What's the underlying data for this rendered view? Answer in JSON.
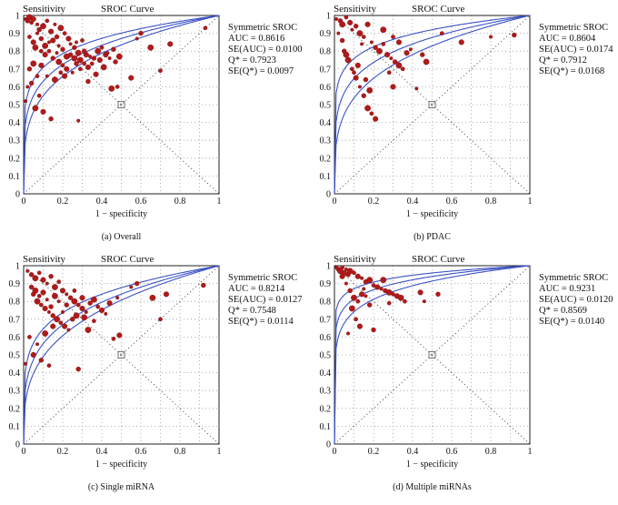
{
  "chart_data": [
    {
      "type": "scatter",
      "caption": "(a) Overall",
      "title": "SROC Curve",
      "ylabel": "Sensitivity",
      "xlabel": "1 − specificity",
      "xlim": [
        0,
        1
      ],
      "ylim": [
        0,
        1
      ],
      "x_ticks": [
        "0",
        "0.2",
        "0.4",
        "0.6",
        "0.8",
        "1"
      ],
      "y_ticks": [
        "0",
        "0.1",
        "0.2",
        "0.3",
        "0.4",
        "0.5",
        "0.6",
        "0.7",
        "0.8",
        "0.9",
        "1"
      ],
      "stats": [
        "Symmetric SROC",
        "AUC = 0.8616",
        "SE(AUC) = 0.0100",
        "Q* = 0.7923",
        "SE(Q*) = 0.0097"
      ],
      "curve_exponents": [
        0.15,
        0.2,
        0.26
      ],
      "points": [
        [
          0.01,
          0.98
        ],
        [
          0.02,
          0.97
        ],
        [
          0.03,
          0.99
        ],
        [
          0.04,
          0.96
        ],
        [
          0.05,
          0.98
        ],
        [
          0.07,
          0.95
        ],
        [
          0.08,
          0.92
        ],
        [
          0.1,
          0.94
        ],
        [
          0.12,
          0.97
        ],
        [
          0.14,
          0.91
        ],
        [
          0.16,
          0.95
        ],
        [
          0.17,
          0.88
        ],
        [
          0.19,
          0.93
        ],
        [
          0.21,
          0.9
        ],
        [
          0.23,
          0.87
        ],
        [
          0.24,
          0.84
        ],
        [
          0.26,
          0.82
        ],
        [
          0.28,
          0.79
        ],
        [
          0.3,
          0.86
        ],
        [
          0.32,
          0.78
        ],
        [
          0.34,
          0.77
        ],
        [
          0.36,
          0.76
        ],
        [
          0.38,
          0.8
        ],
        [
          0.4,
          0.82
        ],
        [
          0.42,
          0.78
        ],
        [
          0.44,
          0.76
        ],
        [
          0.47,
          0.74
        ],
        [
          0.06,
          0.82
        ],
        [
          0.09,
          0.8
        ],
        [
          0.11,
          0.78
        ],
        [
          0.13,
          0.85
        ],
        [
          0.15,
          0.76
        ],
        [
          0.18,
          0.74
        ],
        [
          0.2,
          0.72
        ],
        [
          0.22,
          0.7
        ],
        [
          0.25,
          0.68
        ],
        [
          0.27,
          0.73
        ],
        [
          0.29,
          0.75
        ],
        [
          0.31,
          0.73
        ],
        [
          0.33,
          0.71
        ],
        [
          0.02,
          0.6
        ],
        [
          0.04,
          0.62
        ],
        [
          0.06,
          0.48
        ],
        [
          0.08,
          0.55
        ],
        [
          0.1,
          0.46
        ],
        [
          0.12,
          0.66
        ],
        [
          0.14,
          0.42
        ],
        [
          0.16,
          0.64
        ],
        [
          0.19,
          0.68
        ],
        [
          0.21,
          0.66
        ],
        [
          0.28,
          0.41
        ],
        [
          0.33,
          0.63
        ],
        [
          0.45,
          0.59
        ],
        [
          0.48,
          0.6
        ],
        [
          0.55,
          0.65
        ],
        [
          0.58,
          0.87
        ],
        [
          0.6,
          0.9
        ],
        [
          0.65,
          0.82
        ],
        [
          0.7,
          0.69
        ],
        [
          0.75,
          0.84
        ],
        [
          0.18,
          0.83
        ],
        [
          0.24,
          0.78
        ],
        [
          0.26,
          0.76
        ],
        [
          0.35,
          0.73
        ],
        [
          0.39,
          0.75
        ],
        [
          0.43,
          0.79
        ],
        [
          0.46,
          0.81
        ],
        [
          0.49,
          0.77
        ],
        [
          0.03,
          0.88
        ],
        [
          0.05,
          0.85
        ],
        [
          0.07,
          0.9
        ],
        [
          0.09,
          0.87
        ],
        [
          0.11,
          0.83
        ],
        [
          0.13,
          0.8
        ],
        [
          0.15,
          0.86
        ],
        [
          0.17,
          0.79
        ],
        [
          0.2,
          0.81
        ],
        [
          0.22,
          0.77
        ],
        [
          0.29,
          0.7
        ],
        [
          0.37,
          0.67
        ],
        [
          0.01,
          0.52
        ],
        [
          0.03,
          0.7
        ],
        [
          0.05,
          0.73
        ],
        [
          0.07,
          0.66
        ],
        [
          0.09,
          0.72
        ],
        [
          0.27,
          0.85
        ],
        [
          0.31,
          0.8
        ],
        [
          0.41,
          0.71
        ],
        [
          0.93,
          0.93
        ]
      ]
    },
    {
      "type": "scatter",
      "caption": "(b) PDAC",
      "title": "SROC Curve",
      "ylabel": "Sensitivity",
      "xlabel": "1 − specificity",
      "xlim": [
        0,
        1
      ],
      "ylim": [
        0,
        1
      ],
      "x_ticks": [
        "0",
        "0.2",
        "0.4",
        "0.6",
        "0.8",
        "1"
      ],
      "y_ticks": [
        "0",
        "0.1",
        "0.2",
        "0.3",
        "0.4",
        "0.5",
        "0.6",
        "0.7",
        "0.8",
        "0.9",
        "1"
      ],
      "stats": [
        "Symmetric SROC",
        "AUC = 0.8604",
        "SE(AUC) = 0.0174",
        "Q* = 0.7912",
        "SE(Q*) = 0.0168"
      ],
      "curve_exponents": [
        0.12,
        0.19,
        0.27
      ],
      "points": [
        [
          0.01,
          0.98
        ],
        [
          0.03,
          0.97
        ],
        [
          0.04,
          0.95
        ],
        [
          0.06,
          0.99
        ],
        [
          0.08,
          0.96
        ],
        [
          0.09,
          0.92
        ],
        [
          0.11,
          0.94
        ],
        [
          0.13,
          0.9
        ],
        [
          0.15,
          0.88
        ],
        [
          0.17,
          0.95
        ],
        [
          0.19,
          0.85
        ],
        [
          0.21,
          0.82
        ],
        [
          0.23,
          0.8
        ],
        [
          0.25,
          0.84
        ],
        [
          0.27,
          0.78
        ],
        [
          0.29,
          0.76
        ],
        [
          0.31,
          0.74
        ],
        [
          0.33,
          0.72
        ],
        [
          0.35,
          0.7
        ],
        [
          0.37,
          0.79
        ],
        [
          0.39,
          0.81
        ],
        [
          0.05,
          0.8
        ],
        [
          0.07,
          0.75
        ],
        [
          0.09,
          0.7
        ],
        [
          0.11,
          0.65
        ],
        [
          0.13,
          0.6
        ],
        [
          0.15,
          0.55
        ],
        [
          0.17,
          0.48
        ],
        [
          0.19,
          0.45
        ],
        [
          0.21,
          0.42
        ],
        [
          0.02,
          0.9
        ],
        [
          0.04,
          0.86
        ],
        [
          0.06,
          0.78
        ],
        [
          0.1,
          0.68
        ],
        [
          0.12,
          0.72
        ],
        [
          0.14,
          0.84
        ],
        [
          0.16,
          0.64
        ],
        [
          0.18,
          0.58
        ],
        [
          0.28,
          0.68
        ],
        [
          0.3,
          0.6
        ],
        [
          0.42,
          0.59
        ],
        [
          0.45,
          0.78
        ],
        [
          0.47,
          0.74
        ],
        [
          0.55,
          0.9
        ],
        [
          0.65,
          0.85
        ],
        [
          0.8,
          0.88
        ],
        [
          0.92,
          0.89
        ],
        [
          0.25,
          0.92
        ],
        [
          0.3,
          0.88
        ],
        [
          0.33,
          0.85
        ]
      ]
    },
    {
      "type": "scatter",
      "caption": "(c) Single miRNA",
      "title": "SROC Curve",
      "ylabel": "Sensitivity",
      "xlabel": "1 − specificity",
      "xlim": [
        0,
        1
      ],
      "ylim": [
        0,
        1
      ],
      "x_ticks": [
        "0",
        "0.2",
        "0.4",
        "0.6",
        "0.8",
        "1"
      ],
      "y_ticks": [
        "0",
        "0.1",
        "0.2",
        "0.3",
        "0.4",
        "0.5",
        "0.6",
        "0.7",
        "0.8",
        "0.9",
        "1"
      ],
      "stats": [
        "Symmetric SROC",
        "AUC = 0.8214",
        "SE(AUC) = 0.0127",
        "Q* = 0.7548",
        "SE(Q*) = 0.0114"
      ],
      "curve_exponents": [
        0.19,
        0.25,
        0.31
      ],
      "points": [
        [
          0.02,
          0.97
        ],
        [
          0.04,
          0.95
        ],
        [
          0.06,
          0.93
        ],
        [
          0.08,
          0.96
        ],
        [
          0.1,
          0.92
        ],
        [
          0.12,
          0.9
        ],
        [
          0.14,
          0.94
        ],
        [
          0.16,
          0.88
        ],
        [
          0.18,
          0.91
        ],
        [
          0.2,
          0.86
        ],
        [
          0.22,
          0.84
        ],
        [
          0.24,
          0.82
        ],
        [
          0.26,
          0.8
        ],
        [
          0.28,
          0.78
        ],
        [
          0.3,
          0.76
        ],
        [
          0.32,
          0.74
        ],
        [
          0.34,
          0.79
        ],
        [
          0.36,
          0.81
        ],
        [
          0.38,
          0.77
        ],
        [
          0.4,
          0.75
        ],
        [
          0.42,
          0.73
        ],
        [
          0.05,
          0.84
        ],
        [
          0.07,
          0.8
        ],
        [
          0.09,
          0.78
        ],
        [
          0.11,
          0.76
        ],
        [
          0.13,
          0.74
        ],
        [
          0.15,
          0.72
        ],
        [
          0.17,
          0.7
        ],
        [
          0.19,
          0.68
        ],
        [
          0.21,
          0.66
        ],
        [
          0.23,
          0.64
        ],
        [
          0.25,
          0.7
        ],
        [
          0.27,
          0.72
        ],
        [
          0.03,
          0.6
        ],
        [
          0.05,
          0.5
        ],
        [
          0.07,
          0.56
        ],
        [
          0.09,
          0.47
        ],
        [
          0.11,
          0.62
        ],
        [
          0.13,
          0.44
        ],
        [
          0.15,
          0.66
        ],
        [
          0.2,
          0.74
        ],
        [
          0.28,
          0.42
        ],
        [
          0.33,
          0.64
        ],
        [
          0.46,
          0.59
        ],
        [
          0.49,
          0.61
        ],
        [
          0.55,
          0.88
        ],
        [
          0.58,
          0.9
        ],
        [
          0.66,
          0.82
        ],
        [
          0.7,
          0.7
        ],
        [
          0.73,
          0.84
        ],
        [
          0.18,
          0.8
        ],
        [
          0.22,
          0.78
        ],
        [
          0.31,
          0.71
        ],
        [
          0.36,
          0.69
        ],
        [
          0.44,
          0.79
        ],
        [
          0.48,
          0.82
        ],
        [
          0.04,
          0.88
        ],
        [
          0.06,
          0.86
        ],
        [
          0.08,
          0.83
        ],
        [
          0.1,
          0.85
        ],
        [
          0.12,
          0.81
        ],
        [
          0.14,
          0.77
        ],
        [
          0.16,
          0.83
        ],
        [
          0.26,
          0.86
        ],
        [
          0.3,
          0.82
        ],
        [
          0.01,
          0.45
        ],
        [
          0.92,
          0.89
        ]
      ]
    },
    {
      "type": "scatter",
      "caption": "(d) Multiple miRNAs",
      "title": "SROC Curve",
      "ylabel": "Sensitivity",
      "xlabel": "1 − specificity",
      "xlim": [
        0,
        1
      ],
      "ylim": [
        0,
        1
      ],
      "x_ticks": [
        "0",
        "0.2",
        "0.4",
        "0.6",
        "0.8",
        "1"
      ],
      "y_ticks": [
        "0",
        "0.1",
        "0.2",
        "0.3",
        "0.4",
        "0.5",
        "0.6",
        "0.7",
        "0.8",
        "0.9",
        "1"
      ],
      "stats": [
        "Symmetric SROC",
        "AUC = 0.9231",
        "SE(AUC) = 0.0120",
        "Q* = 0.8569",
        "SE(Q*) = 0.0140"
      ],
      "curve_exponents": [
        0.06,
        0.09,
        0.13
      ],
      "points": [
        [
          0.01,
          0.99
        ],
        [
          0.02,
          0.98
        ],
        [
          0.03,
          0.97
        ],
        [
          0.04,
          0.99
        ],
        [
          0.05,
          0.96
        ],
        [
          0.06,
          0.98
        ],
        [
          0.07,
          0.95
        ],
        [
          0.08,
          0.97
        ],
        [
          0.1,
          0.96
        ],
        [
          0.12,
          0.94
        ],
        [
          0.14,
          0.93
        ],
        [
          0.16,
          0.91
        ],
        [
          0.18,
          0.92
        ],
        [
          0.2,
          0.89
        ],
        [
          0.22,
          0.88
        ],
        [
          0.24,
          0.87
        ],
        [
          0.26,
          0.86
        ],
        [
          0.28,
          0.85
        ],
        [
          0.3,
          0.84
        ],
        [
          0.32,
          0.83
        ],
        [
          0.06,
          0.9
        ],
        [
          0.08,
          0.86
        ],
        [
          0.1,
          0.82
        ],
        [
          0.12,
          0.8
        ],
        [
          0.14,
          0.84
        ],
        [
          0.16,
          0.83
        ],
        [
          0.18,
          0.78
        ],
        [
          0.09,
          0.76
        ],
        [
          0.11,
          0.7
        ],
        [
          0.13,
          0.66
        ],
        [
          0.07,
          0.62
        ],
        [
          0.2,
          0.64
        ],
        [
          0.34,
          0.82
        ],
        [
          0.36,
          0.8
        ],
        [
          0.44,
          0.85
        ],
        [
          0.46,
          0.8
        ],
        [
          0.53,
          0.84
        ],
        [
          0.25,
          0.92
        ],
        [
          0.28,
          0.79
        ],
        [
          0.04,
          0.94
        ],
        [
          0.15,
          0.87
        ]
      ]
    }
  ]
}
